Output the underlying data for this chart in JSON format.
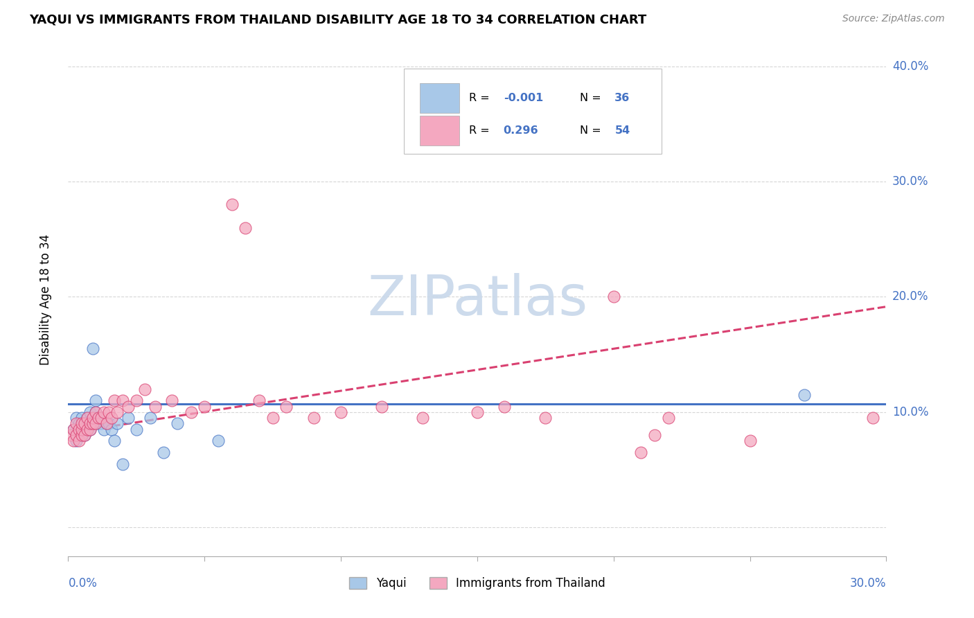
{
  "title": "YAQUI VS IMMIGRANTS FROM THAILAND DISABILITY AGE 18 TO 34 CORRELATION CHART",
  "source": "Source: ZipAtlas.com",
  "ylabel": "Disability Age 18 to 34",
  "xlim": [
    0.0,
    0.3
  ],
  "ylim": [
    -0.025,
    0.42
  ],
  "yaqui_color": "#a8c8e8",
  "thailand_color": "#f4a8c0",
  "trendline_yaqui_color": "#4472c4",
  "trendline_thailand_color": "#d94070",
  "watermark": "ZIPatlas",
  "watermark_color": "#c8d8ea",
  "yaqui_x": [
    0.002,
    0.003,
    0.003,
    0.004,
    0.004,
    0.005,
    0.005,
    0.005,
    0.006,
    0.006,
    0.007,
    0.007,
    0.007,
    0.008,
    0.008,
    0.009,
    0.009,
    0.01,
    0.01,
    0.011,
    0.011,
    0.012,
    0.013,
    0.014,
    0.015,
    0.016,
    0.017,
    0.018,
    0.02,
    0.022,
    0.025,
    0.03,
    0.035,
    0.04,
    0.055,
    0.27
  ],
  "yaqui_y": [
    0.085,
    0.095,
    0.075,
    0.085,
    0.09,
    0.085,
    0.08,
    0.095,
    0.08,
    0.09,
    0.085,
    0.09,
    0.095,
    0.085,
    0.1,
    0.155,
    0.09,
    0.11,
    0.1,
    0.09,
    0.095,
    0.09,
    0.085,
    0.09,
    0.09,
    0.085,
    0.075,
    0.09,
    0.055,
    0.095,
    0.085,
    0.095,
    0.065,
    0.09,
    0.075,
    0.115
  ],
  "thailand_x": [
    0.001,
    0.002,
    0.002,
    0.003,
    0.003,
    0.004,
    0.004,
    0.005,
    0.005,
    0.005,
    0.006,
    0.006,
    0.007,
    0.007,
    0.008,
    0.008,
    0.009,
    0.009,
    0.01,
    0.01,
    0.011,
    0.012,
    0.013,
    0.014,
    0.015,
    0.016,
    0.017,
    0.018,
    0.02,
    0.022,
    0.025,
    0.028,
    0.032,
    0.038,
    0.045,
    0.05,
    0.06,
    0.065,
    0.07,
    0.075,
    0.08,
    0.09,
    0.1,
    0.115,
    0.13,
    0.15,
    0.16,
    0.175,
    0.2,
    0.21,
    0.215,
    0.22,
    0.25,
    0.295
  ],
  "thailand_y": [
    0.08,
    0.085,
    0.075,
    0.08,
    0.09,
    0.075,
    0.085,
    0.08,
    0.085,
    0.09,
    0.08,
    0.09,
    0.085,
    0.095,
    0.085,
    0.09,
    0.09,
    0.095,
    0.09,
    0.1,
    0.095,
    0.095,
    0.1,
    0.09,
    0.1,
    0.095,
    0.11,
    0.1,
    0.11,
    0.105,
    0.11,
    0.12,
    0.105,
    0.11,
    0.1,
    0.105,
    0.28,
    0.26,
    0.11,
    0.095,
    0.105,
    0.095,
    0.1,
    0.105,
    0.095,
    0.1,
    0.105,
    0.095,
    0.2,
    0.065,
    0.08,
    0.095,
    0.075,
    0.095
  ],
  "trendline_yaqui_slope": 0.0,
  "trendline_yaqui_intercept": 0.107,
  "trendline_thailand_slope": 0.365,
  "trendline_thailand_intercept": 0.082
}
